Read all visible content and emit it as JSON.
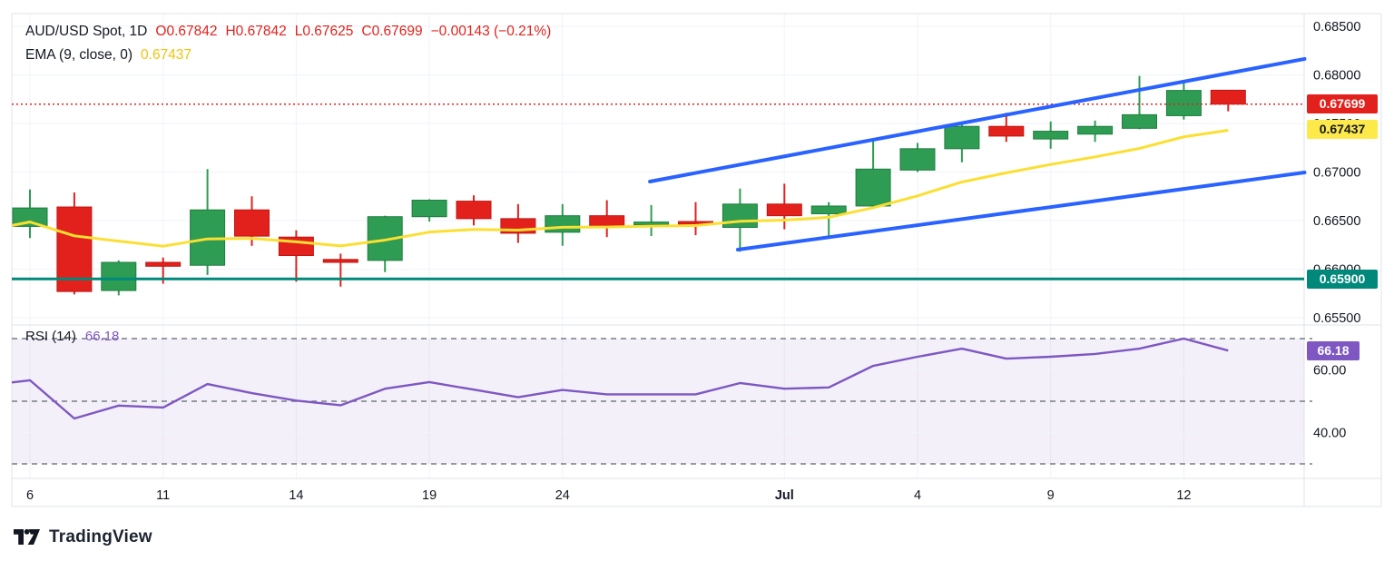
{
  "legend": {
    "symbol": "AUD/USD Spot, 1D",
    "open": "O0.67842",
    "high": "H0.67842",
    "low": "L0.67625",
    "close": "C0.67699",
    "change": "−0.00143 (−0.21%)",
    "ema_label": "EMA (9, close, 0)",
    "ema_value": "0.67437"
  },
  "rsi_legend": {
    "label": "RSI (14)",
    "value": "66.18"
  },
  "badges": {
    "last_price": "0.67699",
    "ema": "0.67437",
    "support": "0.65900",
    "rsi": "66.18"
  },
  "watermark_text": "TradingView",
  "colors": {
    "up": "#2e9c52",
    "up_dark": "#1f7e40",
    "down": "#e3211c",
    "down_dark": "#c01511",
    "ema": "#fbdf32",
    "trend_blue": "#2962ff",
    "support_teal": "#00897b",
    "rsi_purple": "#7e57c2",
    "rsi_fill": "rgba(126,87,194,0.09)",
    "grid": "#f0f3fa",
    "border": "#e0e3eb",
    "dash_gray": "#787b86",
    "axis_text": "#131722",
    "dotted_red": "#e3211c"
  },
  "chart_data": {
    "type": "candlestick",
    "title": "AUD/USD Spot, 1D",
    "legend_note": "EMA (9, close, 0) = 0.67437; RSI (14) = 66.18",
    "price_axis_range_drawn": [
      0.655,
      0.685
    ],
    "price_ticks": [
      {
        "p": 0.685,
        "label": "0.68500"
      },
      {
        "p": 0.68,
        "label": "0.68000"
      },
      {
        "p": 0.675,
        "label": "0.67500"
      },
      {
        "p": 0.67,
        "label": "0.67000"
      },
      {
        "p": 0.665,
        "label": "0.66500"
      },
      {
        "p": 0.66,
        "label": "0.66000"
      },
      {
        "p": 0.655,
        "label": "0.65500"
      }
    ],
    "time_ticks": [
      {
        "index": 0,
        "label": "6",
        "bold": false
      },
      {
        "index": 3,
        "label": "11",
        "bold": false
      },
      {
        "index": 6,
        "label": "14",
        "bold": false
      },
      {
        "index": 9,
        "label": "19",
        "bold": false
      },
      {
        "index": 12,
        "label": "24",
        "bold": false
      },
      {
        "index": 17,
        "label": "Jul",
        "bold": true
      },
      {
        "index": 20,
        "label": "4",
        "bold": false
      },
      {
        "index": 23,
        "label": "9",
        "bold": false
      },
      {
        "index": 26,
        "label": "12",
        "bold": false
      }
    ],
    "candles": [
      {
        "o": 0.6644,
        "h": 0.6682,
        "l": 0.6632,
        "c": 0.6663
      },
      {
        "o": 0.6664,
        "h": 0.6679,
        "l": 0.6574,
        "c": 0.6577
      },
      {
        "o": 0.6578,
        "h": 0.6609,
        "l": 0.6573,
        "c": 0.6607
      },
      {
        "o": 0.6607,
        "h": 0.6612,
        "l": 0.6585,
        "c": 0.6603
      },
      {
        "o": 0.6604,
        "h": 0.6703,
        "l": 0.6594,
        "c": 0.6661
      },
      {
        "o": 0.6661,
        "h": 0.6675,
        "l": 0.6624,
        "c": 0.6634
      },
      {
        "o": 0.6633,
        "h": 0.664,
        "l": 0.6587,
        "c": 0.6614
      },
      {
        "o": 0.661,
        "h": 0.6616,
        "l": 0.6582,
        "c": 0.6607
      },
      {
        "o": 0.6609,
        "h": 0.6655,
        "l": 0.6597,
        "c": 0.6654
      },
      {
        "o": 0.6654,
        "h": 0.6672,
        "l": 0.6649,
        "c": 0.6671
      },
      {
        "o": 0.667,
        "h": 0.6676,
        "l": 0.6645,
        "c": 0.6652
      },
      {
        "o": 0.6652,
        "h": 0.6667,
        "l": 0.6627,
        "c": 0.6637
      },
      {
        "o": 0.6638,
        "h": 0.6667,
        "l": 0.6624,
        "c": 0.6655
      },
      {
        "o": 0.6655,
        "h": 0.6671,
        "l": 0.6633,
        "c": 0.6644
      },
      {
        "o": 0.66475,
        "h": 0.6666,
        "l": 0.6634,
        "c": 0.66485
      },
      {
        "o": 0.6649,
        "h": 0.6669,
        "l": 0.6635,
        "c": 0.6647
      },
      {
        "o": 0.6643,
        "h": 0.6683,
        "l": 0.6618,
        "c": 0.6667
      },
      {
        "o": 0.6667,
        "h": 0.6688,
        "l": 0.6641,
        "c": 0.6655
      },
      {
        "o": 0.6657,
        "h": 0.6669,
        "l": 0.6632,
        "c": 0.6665
      },
      {
        "o": 0.6665,
        "h": 0.6732,
        "l": 0.6662,
        "c": 0.6703
      },
      {
        "o": 0.6702,
        "h": 0.673,
        "l": 0.67,
        "c": 0.6724
      },
      {
        "o": 0.6724,
        "h": 0.6752,
        "l": 0.671,
        "c": 0.6747
      },
      {
        "o": 0.6747,
        "h": 0.6761,
        "l": 0.6731,
        "c": 0.6737
      },
      {
        "o": 0.6734,
        "h": 0.6752,
        "l": 0.6724,
        "c": 0.6742
      },
      {
        "o": 0.6739,
        "h": 0.6753,
        "l": 0.6731,
        "c": 0.6747
      },
      {
        "o": 0.6745,
        "h": 0.6799,
        "l": 0.6744,
        "c": 0.6759
      },
      {
        "o": 0.6758,
        "h": 0.6793,
        "l": 0.6754,
        "c": 0.6784
      },
      {
        "o": 0.67842,
        "h": 0.67842,
        "l": 0.67625,
        "c": 0.67699
      }
    ],
    "ema": {
      "period": 9,
      "source": "close",
      "offset": 0,
      "seed": 0.6645,
      "last": 0.67437
    },
    "rsi": {
      "period": 14,
      "last": 66.18,
      "values": [
        56.7,
        44.5,
        48.6,
        48.0,
        55.5,
        52.6,
        50.2,
        48.7,
        54.0,
        56.1,
        53.7,
        51.3,
        53.6,
        52.2,
        52.2,
        52.2,
        55.8,
        54.0,
        54.4,
        61.3,
        64.2,
        66.8,
        63.6,
        64.2,
        65.1,
        66.8,
        70.0,
        66.18
      ],
      "edge_start": 56.0,
      "bands": [
        70,
        50,
        30
      ],
      "ticks": [
        {
          "v": 60,
          "label": "60.00"
        },
        {
          "v": 40,
          "label": "40.00"
        }
      ]
    },
    "levels": {
      "support": 0.659,
      "last_price": 0.67699
    },
    "trendlines": [
      {
        "id": "channel-upper",
        "i1": 13.97,
        "p1": 0.66902,
        "i2": 28.72,
        "p2": 0.68164
      },
      {
        "id": "channel-lower",
        "i1": 15.95,
        "p1": 0.66201,
        "i2": 28.72,
        "p2": 0.66995
      }
    ]
  }
}
